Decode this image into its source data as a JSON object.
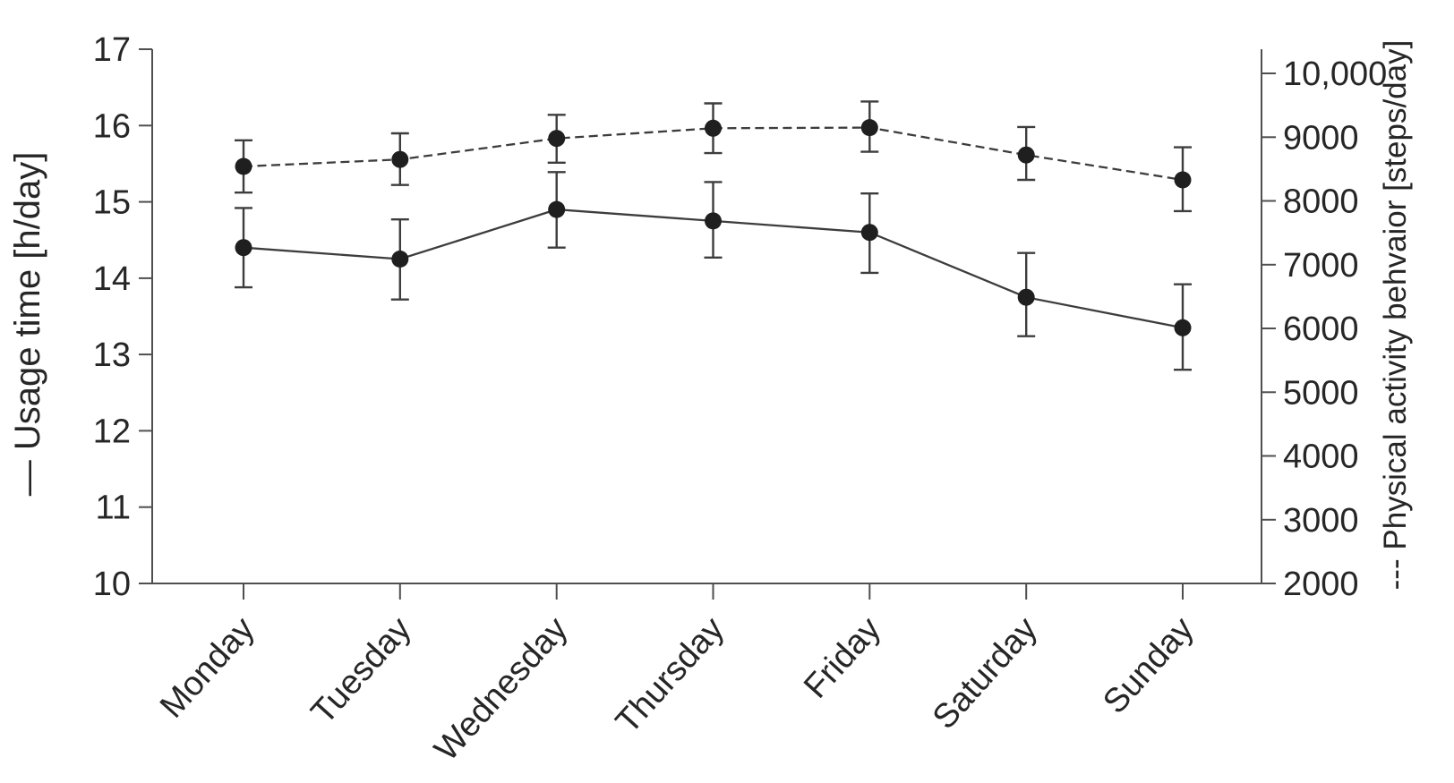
{
  "chart_data": {
    "type": "line",
    "title": "",
    "categories": [
      "Monday",
      "Tuesday",
      "Wednesday",
      "Thursday",
      "Friday",
      "Saturday",
      "Sunday"
    ],
    "series": [
      {
        "name": "Usage time",
        "axis": "left",
        "line_style": "solid",
        "unit": "h/day",
        "values": [
          14.4,
          14.25,
          14.9,
          14.75,
          14.6,
          13.75,
          13.35
        ],
        "error_low": [
          13.88,
          13.72,
          14.4,
          14.27,
          14.07,
          13.24,
          12.8
        ],
        "error_high": [
          14.92,
          14.77,
          15.39,
          15.26,
          15.11,
          14.33,
          13.92
        ]
      },
      {
        "name": "Physical activity behvaior",
        "axis": "right",
        "line_style": "dashed",
        "unit": "steps/day",
        "values": [
          8540,
          8650,
          8980,
          9140,
          9150,
          8720,
          8330
        ],
        "error_low": [
          8130,
          8250,
          8600,
          8750,
          8770,
          8330,
          7840
        ],
        "error_high": [
          8950,
          9060,
          9350,
          9530,
          9560,
          9160,
          8840
        ]
      }
    ],
    "left_axis": {
      "label": "— Usage time [h/day]",
      "ticks": [
        "10",
        "11",
        "12",
        "13",
        "14",
        "15",
        "16",
        "17"
      ],
      "range": [
        10,
        17
      ]
    },
    "right_axis": {
      "label": "--- Physical activity behvaior [steps/day]",
      "ticks": [
        "2000",
        "3000",
        "4000",
        "5000",
        "6000",
        "7000",
        "8000",
        "9000",
        "10,000"
      ],
      "range": [
        2000,
        10000
      ]
    },
    "x_axis": {
      "tick_labels": [
        "Monday",
        "Tuesday",
        "Wednesday",
        "Thursday",
        "Friday",
        "Saturday",
        "Sunday"
      ]
    },
    "grid": false,
    "legend_position": "in-axis-labels",
    "colors": {
      "line": "#3d3d3d",
      "marker": "#1f1f1f",
      "axis": "#4f4f4f",
      "text": "#262626",
      "background": "#ffffff"
    }
  }
}
